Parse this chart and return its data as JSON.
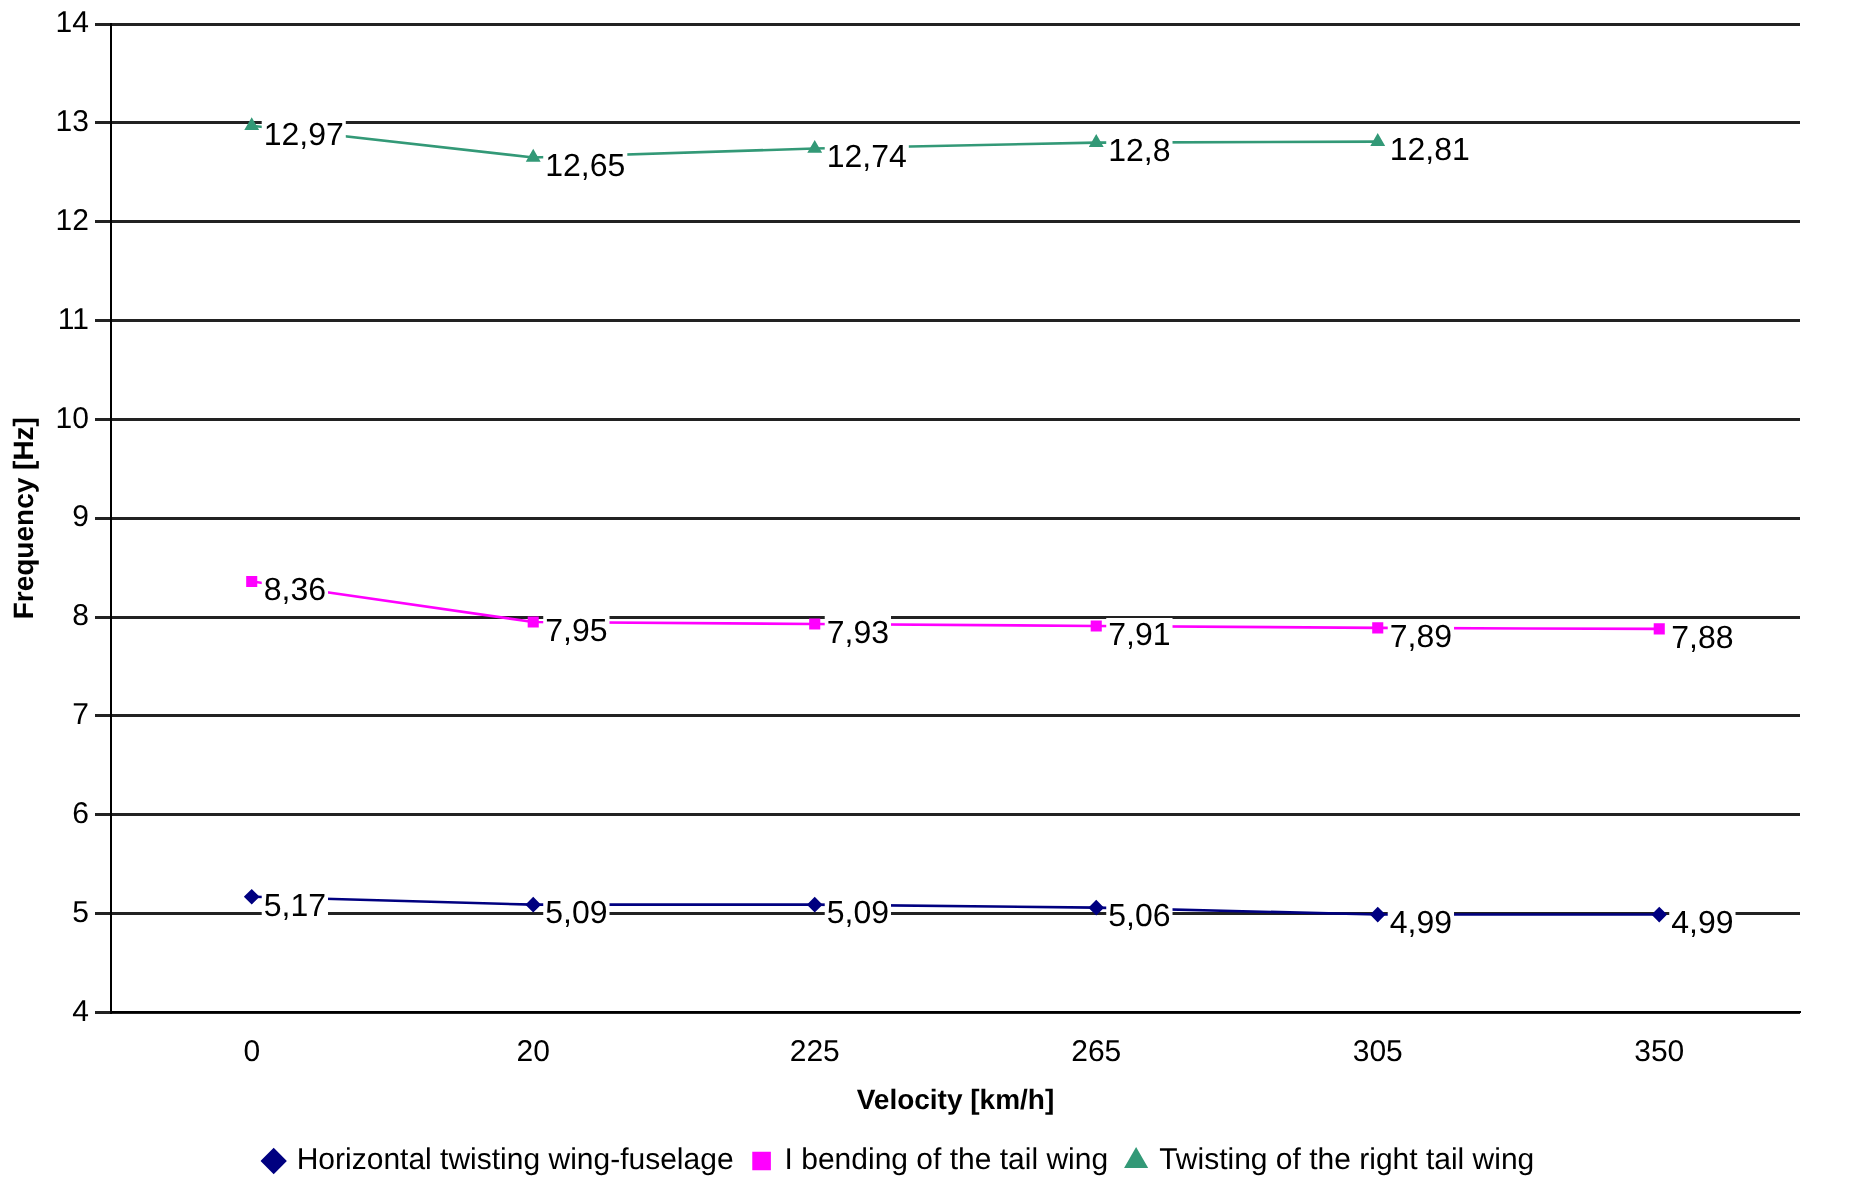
{
  "chart_data": {
    "type": "line",
    "xlabel": "Velocity [km/h]",
    "ylabel": "Frequency [Hz]",
    "categories": [
      "0",
      "20",
      "225",
      "265",
      "305",
      "350"
    ],
    "ylim": [
      4,
      14
    ],
    "yticks": [
      4,
      5,
      6,
      7,
      8,
      9,
      10,
      11,
      12,
      13,
      14
    ],
    "grid": "y",
    "legend": "bottom",
    "series": [
      {
        "name": "Horizontal twisting wing-fuselage",
        "color": "#000080",
        "marker": "diamond",
        "values": [
          5.17,
          5.09,
          5.09,
          5.06,
          4.99,
          4.99
        ],
        "value_labels": [
          "5,17",
          "5,09",
          "5,09",
          "5,06",
          "4,99",
          "4,99"
        ]
      },
      {
        "name": "I bending of the tail wing",
        "color": "#ff00ff",
        "marker": "square",
        "values": [
          8.36,
          7.95,
          7.93,
          7.91,
          7.89,
          7.88
        ],
        "value_labels": [
          "8,36",
          "7,95",
          "7,93",
          "7,91",
          "7,89",
          "7,88"
        ]
      },
      {
        "name": "Twisting of the right tail wing",
        "color": "#339977",
        "marker": "triangle",
        "values": [
          12.97,
          12.65,
          12.74,
          12.8,
          12.81,
          null
        ],
        "value_labels": [
          "12,97",
          "12,65",
          "12,74",
          "12,8",
          "12,81",
          null
        ]
      }
    ]
  }
}
